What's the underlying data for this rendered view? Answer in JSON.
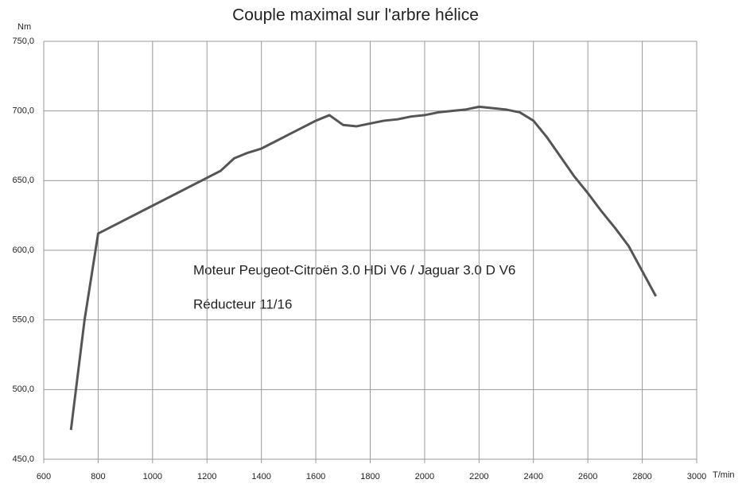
{
  "chart_data": {
    "type": "line",
    "title": "Couple maximal sur l'arbre hélice",
    "y_label": "Nm",
    "x_label": "T/min",
    "annotations": [
      "Moteur Peugeot-Citroën 3.0 HDi V6 / Jaguar 3.0 D V6",
      "Réducteur 11/16"
    ],
    "x": [
      700,
      750,
      800,
      900,
      1000,
      1100,
      1150,
      1200,
      1250,
      1300,
      1350,
      1400,
      1450,
      1500,
      1550,
      1600,
      1650,
      1700,
      1750,
      1800,
      1850,
      1900,
      1950,
      2000,
      2050,
      2100,
      2150,
      2200,
      2250,
      2300,
      2350,
      2400,
      2450,
      2500,
      2550,
      2600,
      2650,
      2700,
      2750,
      2800,
      2850
    ],
    "series": [
      {
        "name": "Couple",
        "color": "#555555",
        "values": [
          471,
          550,
          612,
          622,
          632,
          642,
          647,
          652,
          657,
          666,
          670,
          673,
          678,
          683,
          688,
          693,
          697,
          690,
          689,
          691,
          693,
          694,
          696,
          697,
          699,
          700,
          701,
          703,
          702,
          701,
          699,
          693,
          681,
          667,
          653,
          641,
          628,
          616,
          603,
          585,
          567
        ]
      }
    ],
    "xlim": [
      600,
      3000
    ],
    "xticks": [
      600,
      800,
      1000,
      1200,
      1400,
      1600,
      1800,
      2000,
      2200,
      2400,
      2600,
      2800,
      3000
    ],
    "ylim": [
      450,
      750
    ],
    "yticks": [
      {
        "value": 450,
        "label": "450,0"
      },
      {
        "value": 500,
        "label": "500,0"
      },
      {
        "value": 550,
        "label": "550,0"
      },
      {
        "value": 600,
        "label": "600,0"
      },
      {
        "value": 650,
        "label": "650,0"
      },
      {
        "value": 700,
        "label": "700,0"
      },
      {
        "value": 750,
        "label": "750,0"
      }
    ],
    "grid": true
  }
}
